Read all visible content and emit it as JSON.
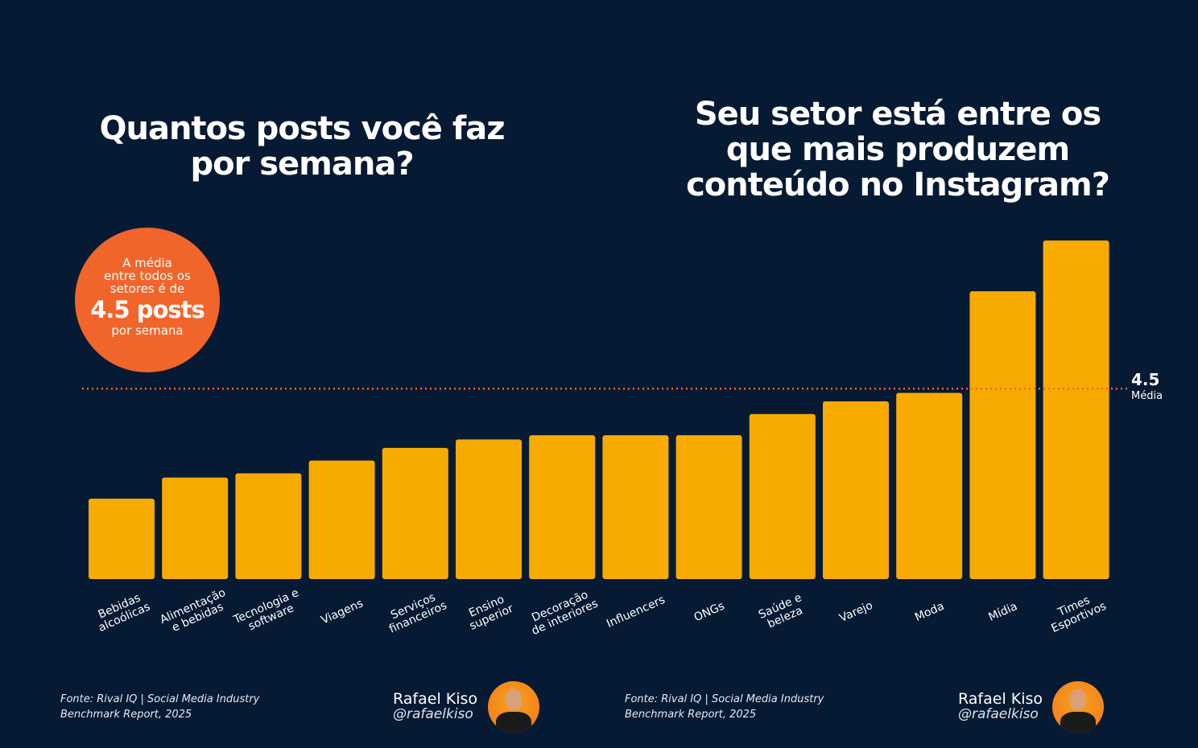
{
  "titles": {
    "left": "Quantos posts você faz por semana?",
    "right": "Seu setor está entre os que mais produzem conteúdo no Instagram?"
  },
  "callout": {
    "line1": "A média",
    "line2": "entre todos os",
    "line3": "setores é de",
    "value": "4.5 posts",
    "line4": "por semana"
  },
  "colors": {
    "background": "#071a33",
    "bar": "#f7ab00",
    "accent": "#f2652a"
  },
  "chart_data": {
    "type": "bar",
    "categories": [
      [
        "Bebidas",
        "alcoólicas"
      ],
      [
        "Alimentação",
        "e bebidas"
      ],
      [
        "Tecnologia e",
        "software"
      ],
      [
        "Viagens"
      ],
      [
        "Serviços",
        "financeiros"
      ],
      [
        "Ensino",
        "superior"
      ],
      [
        "Decoração",
        "de interiores"
      ],
      [
        "Influencers"
      ],
      [
        "ONGs"
      ],
      [
        "Saúde e",
        "beleza"
      ],
      [
        "Varejo"
      ],
      [
        "Moda"
      ],
      [
        "Mídia"
      ],
      [
        "Times",
        "Esportivos"
      ]
    ],
    "values": [
      1.9,
      2.4,
      2.5,
      2.8,
      3.1,
      3.3,
      3.4,
      3.4,
      3.4,
      3.9,
      4.2,
      4.4,
      6.8,
      8.0
    ],
    "ylim": [
      0,
      8
    ],
    "grid": false,
    "reference_line": {
      "value": 4.5,
      "value_label": "4.5",
      "label": "Média"
    }
  },
  "footer": {
    "source_line1": "Fonte: Rival IQ | Social Media Industry",
    "source_line2": "Benchmark Report, 2025",
    "author_name": "Rafael Kiso",
    "author_handle": "@rafaelkiso"
  }
}
